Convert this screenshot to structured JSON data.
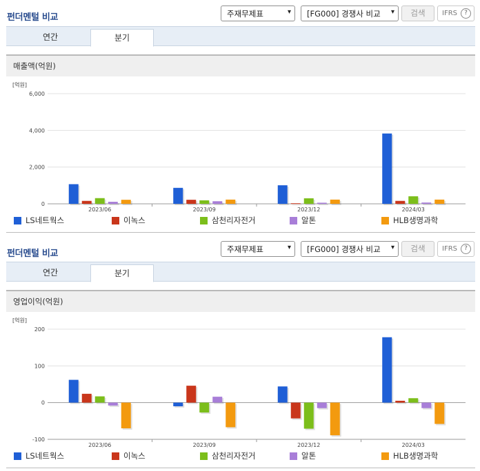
{
  "chart_data": [
    {
      "type": "bar",
      "title": "펀더멘털 비교",
      "subtitle": "매출액(억원)",
      "unit_label": "[억원]",
      "categories": [
        "2023/06",
        "2023/09",
        "2023/12",
        "2024/03"
      ],
      "ylim": [
        0,
        6000
      ],
      "ticks": [
        0,
        2000,
        4000,
        6000
      ],
      "tick_labels": [
        "0",
        "2,000",
        "4,000",
        "6,000"
      ],
      "grid": true,
      "legend_position": "bottom",
      "series": [
        {
          "name": "LS네트웍스",
          "color": "#1f5fd6",
          "values": [
            1070,
            870,
            1010,
            3830
          ]
        },
        {
          "name": "이녹스",
          "color": "#c9361b",
          "values": [
            160,
            220,
            30,
            160
          ]
        },
        {
          "name": "삼천리자전거",
          "color": "#7cbe1b",
          "values": [
            310,
            190,
            300,
            410
          ]
        },
        {
          "name": "알톤",
          "color": "#a87ed8",
          "values": [
            110,
            140,
            60,
            70
          ]
        },
        {
          "name": "HLB생명과학",
          "color": "#f39a0f",
          "values": [
            220,
            230,
            230,
            230
          ]
        }
      ]
    },
    {
      "type": "bar",
      "title": "펀더멘털 비교",
      "subtitle": "영업이익(억원)",
      "unit_label": "[억원]",
      "categories": [
        "2023/06",
        "2023/09",
        "2023/12",
        "2024/03"
      ],
      "ylim": [
        -100,
        200
      ],
      "ticks": [
        -100,
        0,
        100,
        200
      ],
      "tick_labels": [
        "-100",
        "0",
        "100",
        "200"
      ],
      "grid": true,
      "legend_position": "bottom",
      "series": [
        {
          "name": "LS네트웍스",
          "color": "#1f5fd6",
          "values": [
            62,
            -10,
            44,
            178
          ]
        },
        {
          "name": "이녹스",
          "color": "#c9361b",
          "values": [
            24,
            46,
            -43,
            5
          ]
        },
        {
          "name": "삼천리자전거",
          "color": "#7cbe1b",
          "values": [
            17,
            -27,
            -71,
            12
          ]
        },
        {
          "name": "알톤",
          "color": "#a87ed8",
          "values": [
            -8,
            16,
            -15,
            -15
          ]
        },
        {
          "name": "HLB생명과학",
          "color": "#f39a0f",
          "values": [
            -70,
            -67,
            -89,
            -58
          ]
        }
      ]
    }
  ],
  "controls": {
    "select_statement": "주재무제표",
    "select_compare": "[FG000] 경쟁사 비교",
    "search_label": "검색",
    "ifrs_label": "IFRS",
    "help_glyph": "?",
    "dropdown_glyph": "▾"
  },
  "tabs": {
    "annual": "연간",
    "quarter": "분기",
    "active": "quarter"
  }
}
